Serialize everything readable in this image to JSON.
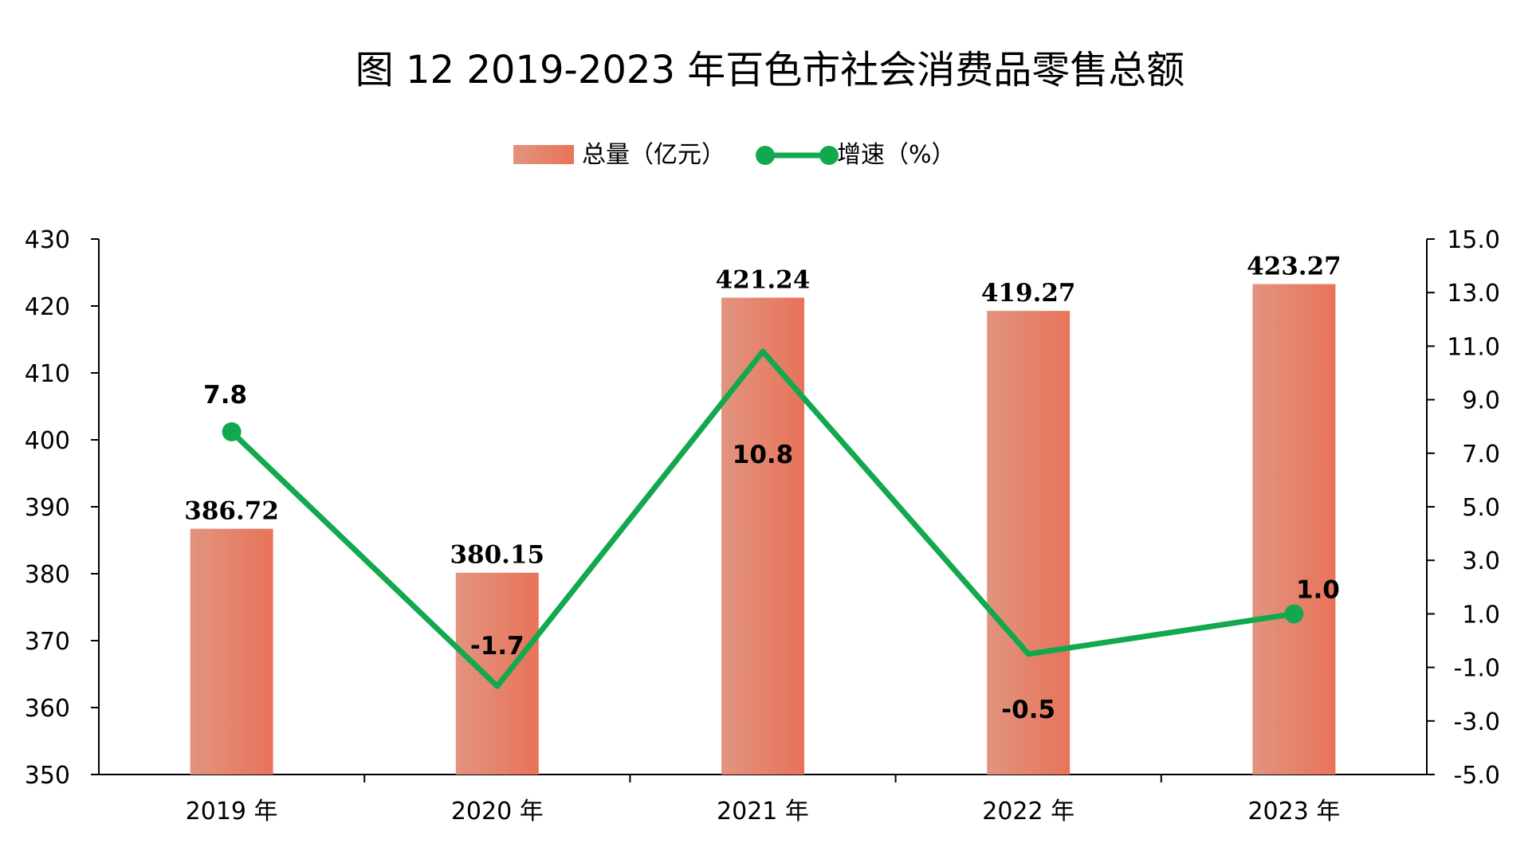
{
  "chart_data": {
    "type": "bar",
    "title": "图 12 2019-2023 年百色市社会消费品零售总额",
    "categories": [
      "2019 年",
      "2020 年",
      "2021 年",
      "2022 年",
      "2023 年"
    ],
    "series": [
      {
        "name": "总量（亿元）",
        "type": "bar",
        "axis": "left",
        "values": [
          386.72,
          380.15,
          421.24,
          419.27,
          423.27
        ],
        "labels": [
          "386.72",
          "380.15",
          "421.24",
          "419.27",
          "423.27"
        ]
      },
      {
        "name": "增速（%）",
        "type": "line",
        "axis": "right",
        "values": [
          7.8,
          -1.7,
          10.8,
          -0.5,
          1.0
        ],
        "labels": [
          "7.8",
          "-1.7",
          "10.8",
          "-0.5",
          "1.0"
        ]
      }
    ],
    "y_left": {
      "ylim": [
        350,
        430
      ],
      "ticks": [
        "430",
        "420",
        "410",
        "400",
        "390",
        "380",
        "370",
        "360",
        "350"
      ]
    },
    "y_right": {
      "ylim": [
        -5,
        15
      ],
      "ticks": [
        "15.0",
        "13.0",
        "11.0",
        "9.0",
        "7.0",
        "5.0",
        "3.0",
        "1.0",
        "-1.0",
        "-3.0",
        "-5.0"
      ]
    },
    "grid": false,
    "legend_position": "top-center",
    "colors": {
      "bar": "#E8735A",
      "bar_light": "#E2947F",
      "line": "#12A94E"
    }
  }
}
